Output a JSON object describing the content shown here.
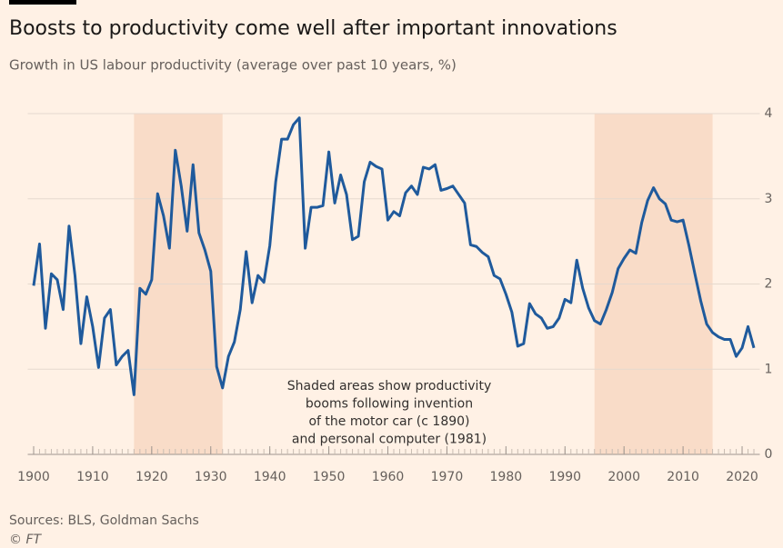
{
  "chart_data": {
    "type": "line",
    "title": "Boosts to productivity come well after important innovations",
    "subtitle": "Growth in US labour productivity (average over past 10 years, %)",
    "annotation": [
      "Shaded areas show productivity",
      "booms following invention",
      "of the motor car (c 1890)",
      "and personal computer (1981)"
    ],
    "source": "Sources: BLS, Goldman Sachs",
    "credit": "© FT",
    "shaded_ranges": [
      [
        1917,
        1932
      ],
      [
        1995,
        2015
      ]
    ],
    "shade_color": "#f9dcc8",
    "x": [
      1900,
      1901,
      1902,
      1903,
      1904,
      1905,
      1906,
      1907,
      1908,
      1909,
      1910,
      1911,
      1912,
      1913,
      1914,
      1915,
      1916,
      1917,
      1918,
      1919,
      1920,
      1921,
      1922,
      1923,
      1924,
      1925,
      1926,
      1927,
      1928,
      1929,
      1930,
      1931,
      1932,
      1933,
      1934,
      1935,
      1936,
      1937,
      1938,
      1939,
      1940,
      1941,
      1942,
      1943,
      1944,
      1945,
      1946,
      1947,
      1948,
      1949,
      1950,
      1951,
      1952,
      1953,
      1954,
      1955,
      1956,
      1957,
      1958,
      1959,
      1960,
      1961,
      1962,
      1963,
      1964,
      1965,
      1966,
      1967,
      1968,
      1969,
      1970,
      1971,
      1972,
      1973,
      1974,
      1975,
      1976,
      1977,
      1978,
      1979,
      1980,
      1981,
      1982,
      1983,
      1984,
      1985,
      1986,
      1987,
      1988,
      1989,
      1990,
      1991,
      1992,
      1993,
      1994,
      1995,
      1996,
      1997,
      1998,
      1999,
      2000,
      2001,
      2002,
      2003,
      2004,
      2005,
      2006,
      2007,
      2008,
      2009,
      2010,
      2011,
      2012,
      2013,
      2014,
      2015,
      2016,
      2017,
      2018,
      2019,
      2020,
      2021,
      2022
    ],
    "series": [
      {
        "name": "US labour productivity growth",
        "color": "#1f5a9c",
        "values": [
          1.98,
          2.47,
          1.48,
          2.12,
          2.05,
          1.7,
          2.68,
          2.1,
          1.3,
          1.85,
          1.5,
          1.02,
          1.6,
          1.7,
          1.05,
          1.15,
          1.22,
          0.7,
          1.95,
          1.88,
          2.05,
          3.06,
          2.8,
          2.42,
          3.57,
          3.15,
          2.62,
          3.4,
          2.6,
          2.4,
          2.15,
          1.03,
          0.78,
          1.15,
          1.32,
          1.7,
          2.38,
          1.78,
          2.1,
          2.02,
          2.45,
          3.2,
          3.7,
          3.7,
          3.87,
          3.95,
          2.42,
          2.9,
          2.9,
          2.92,
          3.55,
          2.95,
          3.28,
          3.05,
          2.52,
          2.56,
          3.2,
          3.43,
          3.38,
          3.35,
          2.75,
          2.85,
          2.8,
          3.07,
          3.15,
          3.05,
          3.37,
          3.35,
          3.4,
          3.1,
          3.12,
          3.15,
          3.05,
          2.95,
          2.46,
          2.44,
          2.37,
          2.32,
          2.1,
          2.06,
          1.88,
          1.67,
          1.27,
          1.3,
          1.77,
          1.65,
          1.6,
          1.48,
          1.5,
          1.6,
          1.82,
          1.78,
          2.28,
          1.95,
          1.72,
          1.57,
          1.53,
          1.7,
          1.9,
          2.18,
          2.3,
          2.4,
          2.36,
          2.72,
          2.98,
          3.13,
          3.0,
          2.94,
          2.75,
          2.73,
          2.75,
          2.45,
          2.12,
          1.8,
          1.53,
          1.43,
          1.38,
          1.35,
          1.35,
          1.15,
          1.25,
          1.5,
          1.25
        ]
      }
    ],
    "xlim": [
      1899,
      2023
    ],
    "xticks": [
      1900,
      1910,
      1920,
      1930,
      1940,
      1950,
      1960,
      1970,
      1980,
      1990,
      2000,
      2010,
      2020
    ],
    "ylim": [
      0,
      4
    ],
    "yticks": [
      0,
      1,
      2,
      3,
      4
    ],
    "grid": true
  }
}
